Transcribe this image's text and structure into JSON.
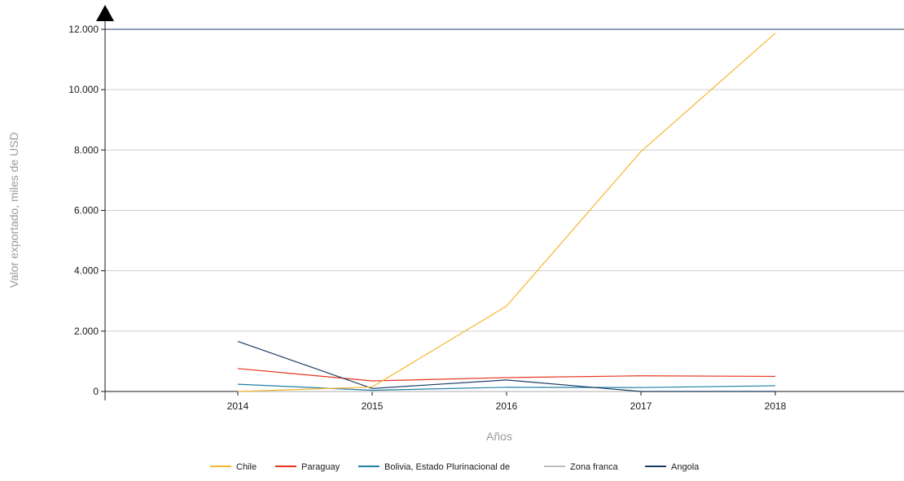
{
  "chart_data": {
    "type": "line",
    "title": "",
    "xlabel": "Años",
    "ylabel": "Valor exportado, miles de USD",
    "x": [
      "2014",
      "2015",
      "2016",
      "2017",
      "2018"
    ],
    "ylim": [
      0,
      12000
    ],
    "yticks": [
      0,
      2000,
      4000,
      6000,
      8000,
      10000,
      12000
    ],
    "ytick_labels": [
      "0",
      "2.000",
      "4.000",
      "6.000",
      "8.000",
      "10.000",
      "12.000"
    ],
    "grid": true,
    "legend_position": "bottom",
    "series": [
      {
        "name": "Chile",
        "color": "#f5b731",
        "values": [
          0,
          150,
          2830,
          7950,
          11870
        ]
      },
      {
        "name": "Paraguay",
        "color": "#e8321c",
        "values": [
          760,
          350,
          460,
          520,
          500
        ]
      },
      {
        "name": "Bolivia, Estado Plurinacional de",
        "color": "#1f7ea6",
        "values": [
          240,
          40,
          140,
          130,
          190
        ]
      },
      {
        "name": "Zona franca",
        "color": "#bdbdbd",
        "values": [
          0,
          0,
          0,
          0,
          0
        ]
      },
      {
        "name": "Angola",
        "color": "#1c3b63",
        "values": [
          1660,
          100,
          380,
          0,
          0
        ]
      }
    ]
  }
}
